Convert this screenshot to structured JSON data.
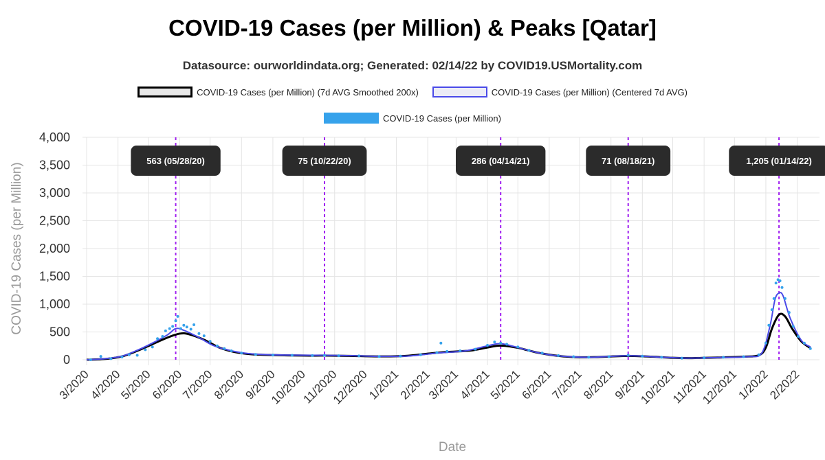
{
  "title": "COVID-19 Cases (per Million) & Peaks [Qatar]",
  "subtitle": "Datasource: ourworldindata.org; Generated: 02/14/22 by COVID19.USMortality.com",
  "colors": {
    "smoothed": "#000000",
    "centered": "#4a4ae8",
    "raw": "#36a2eb",
    "peak_line": "#a020f0",
    "grid": "#e4e4e4",
    "axis_text": "#555555",
    "label_bg": "#2b2b2b"
  },
  "chart_data": {
    "type": "line",
    "xlabel": "Date",
    "ylabel": "COVID-19 Cases (per Million)",
    "ylim": [
      0,
      4000
    ],
    "y_ticks": [
      "0",
      "500",
      "1,000",
      "1,500",
      "2,000",
      "2,500",
      "3,000",
      "3,500",
      "4,000"
    ],
    "x_ticks": [
      "3/2020",
      "4/2020",
      "5/2020",
      "6/2020",
      "7/2020",
      "8/2020",
      "9/2020",
      "10/2020",
      "11/2020",
      "12/2020",
      "1/2021",
      "2/2021",
      "3/2021",
      "4/2021",
      "5/2021",
      "6/2021",
      "7/2021",
      "8/2021",
      "9/2021",
      "10/2021",
      "11/2021",
      "12/2021",
      "1/2022",
      "2/2022"
    ],
    "grid": true,
    "legend_position": "top",
    "series": [
      {
        "name": "COVID-19 Cases (per Million) (7d AVG Smoothed 200x)",
        "style": "line-black",
        "points": [
          [
            "2020-03-01",
            0
          ],
          [
            "2020-03-20",
            15
          ],
          [
            "2020-04-05",
            60
          ],
          [
            "2020-04-20",
            160
          ],
          [
            "2020-05-05",
            280
          ],
          [
            "2020-05-20",
            400
          ],
          [
            "2020-06-01",
            470
          ],
          [
            "2020-06-10",
            460
          ],
          [
            "2020-06-25",
            360
          ],
          [
            "2020-07-10",
            220
          ],
          [
            "2020-07-25",
            140
          ],
          [
            "2020-08-10",
            100
          ],
          [
            "2020-09-01",
            85
          ],
          [
            "2020-10-01",
            75
          ],
          [
            "2020-10-22",
            75
          ],
          [
            "2020-11-15",
            70
          ],
          [
            "2020-12-15",
            60
          ],
          [
            "2021-01-10",
            70
          ],
          [
            "2021-02-01",
            110
          ],
          [
            "2021-02-20",
            140
          ],
          [
            "2021-03-15",
            165
          ],
          [
            "2021-04-01",
            220
          ],
          [
            "2021-04-14",
            255
          ],
          [
            "2021-05-01",
            215
          ],
          [
            "2021-05-20",
            130
          ],
          [
            "2021-06-10",
            70
          ],
          [
            "2021-07-01",
            45
          ],
          [
            "2021-07-20",
            50
          ],
          [
            "2021-08-18",
            70
          ],
          [
            "2021-09-10",
            55
          ],
          [
            "2021-10-01",
            35
          ],
          [
            "2021-10-20",
            30
          ],
          [
            "2021-11-15",
            40
          ],
          [
            "2021-12-10",
            55
          ],
          [
            "2021-12-25",
            80
          ],
          [
            "2022-01-01",
            220
          ],
          [
            "2022-01-07",
            560
          ],
          [
            "2022-01-14",
            810
          ],
          [
            "2022-01-20",
            780
          ],
          [
            "2022-01-27",
            560
          ],
          [
            "2022-02-05",
            330
          ],
          [
            "2022-02-14",
            210
          ]
        ]
      },
      {
        "name": "COVID-19 Cases (per Million) (Centered 7d AVG)",
        "style": "line-blue",
        "points": [
          [
            "2020-03-01",
            0
          ],
          [
            "2020-03-20",
            20
          ],
          [
            "2020-04-05",
            65
          ],
          [
            "2020-04-20",
            170
          ],
          [
            "2020-05-05",
            300
          ],
          [
            "2020-05-20",
            450
          ],
          [
            "2020-05-28",
            560
          ],
          [
            "2020-06-05",
            530
          ],
          [
            "2020-06-20",
            400
          ],
          [
            "2020-07-05",
            250
          ],
          [
            "2020-07-25",
            150
          ],
          [
            "2020-08-15",
            100
          ],
          [
            "2020-09-15",
            85
          ],
          [
            "2020-10-22",
            80
          ],
          [
            "2020-11-20",
            72
          ],
          [
            "2020-12-20",
            60
          ],
          [
            "2021-01-15",
            70
          ],
          [
            "2021-02-10",
            120
          ],
          [
            "2021-03-10",
            160
          ],
          [
            "2021-04-01",
            250
          ],
          [
            "2021-04-14",
            290
          ],
          [
            "2021-05-01",
            220
          ],
          [
            "2021-05-20",
            130
          ],
          [
            "2021-06-10",
            70
          ],
          [
            "2021-07-10",
            45
          ],
          [
            "2021-08-18",
            72
          ],
          [
            "2021-09-15",
            50
          ],
          [
            "2021-10-15",
            30
          ],
          [
            "2021-11-15",
            40
          ],
          [
            "2021-12-15",
            55
          ],
          [
            "2021-12-28",
            120
          ],
          [
            "2022-01-05",
            600
          ],
          [
            "2022-01-10",
            1080
          ],
          [
            "2022-01-14",
            1200
          ],
          [
            "2022-01-18",
            1150
          ],
          [
            "2022-01-25",
            750
          ],
          [
            "2022-02-05",
            350
          ],
          [
            "2022-02-14",
            230
          ]
        ]
      },
      {
        "name": "COVID-19 Cases (per Million)",
        "style": "dots",
        "points": [
          [
            "2020-03-05",
            0
          ],
          [
            "2020-03-15",
            60
          ],
          [
            "2020-03-25",
            20
          ],
          [
            "2020-04-05",
            50
          ],
          [
            "2020-04-12",
            90
          ],
          [
            "2020-04-20",
            80
          ],
          [
            "2020-04-28",
            180
          ],
          [
            "2020-05-05",
            230
          ],
          [
            "2020-05-10",
            380
          ],
          [
            "2020-05-15",
            420
          ],
          [
            "2020-05-18",
            520
          ],
          [
            "2020-05-22",
            560
          ],
          [
            "2020-05-25",
            600
          ],
          [
            "2020-05-28",
            700
          ],
          [
            "2020-05-30",
            780
          ],
          [
            "2020-06-02",
            560
          ],
          [
            "2020-06-05",
            620
          ],
          [
            "2020-06-08",
            590
          ],
          [
            "2020-06-12",
            550
          ],
          [
            "2020-06-15",
            630
          ],
          [
            "2020-06-20",
            470
          ],
          [
            "2020-06-25",
            430
          ],
          [
            "2020-07-01",
            330
          ],
          [
            "2020-07-08",
            250
          ],
          [
            "2020-07-15",
            200
          ],
          [
            "2020-07-22",
            160
          ],
          [
            "2020-08-01",
            120
          ],
          [
            "2020-08-15",
            95
          ],
          [
            "2020-09-01",
            85
          ],
          [
            "2020-09-20",
            80
          ],
          [
            "2020-10-10",
            75
          ],
          [
            "2020-10-22",
            78
          ],
          [
            "2020-11-05",
            72
          ],
          [
            "2020-11-25",
            70
          ],
          [
            "2020-12-15",
            58
          ],
          [
            "2021-01-05",
            65
          ],
          [
            "2021-01-25",
            90
          ],
          [
            "2021-02-10",
            130
          ],
          [
            "2021-02-14",
            300
          ],
          [
            "2021-02-20",
            150
          ],
          [
            "2021-03-05",
            160
          ],
          [
            "2021-03-20",
            190
          ],
          [
            "2021-04-01",
            260
          ],
          [
            "2021-04-08",
            320
          ],
          [
            "2021-04-14",
            300
          ],
          [
            "2021-04-20",
            280
          ],
          [
            "2021-05-01",
            230
          ],
          [
            "2021-05-12",
            170
          ],
          [
            "2021-05-25",
            120
          ],
          [
            "2021-06-10",
            75
          ],
          [
            "2021-06-25",
            55
          ],
          [
            "2021-07-10",
            45
          ],
          [
            "2021-07-30",
            55
          ],
          [
            "2021-08-18",
            80
          ],
          [
            "2021-09-01",
            65
          ],
          [
            "2021-09-20",
            45
          ],
          [
            "2021-10-10",
            30
          ],
          [
            "2021-11-01",
            35
          ],
          [
            "2021-11-20",
            45
          ],
          [
            "2021-12-10",
            55
          ],
          [
            "2021-12-25",
            90
          ],
          [
            "2022-01-01",
            300
          ],
          [
            "2022-01-04",
            620
          ],
          [
            "2022-01-07",
            900
          ],
          [
            "2022-01-09",
            1100
          ],
          [
            "2022-01-11",
            1380
          ],
          [
            "2022-01-13",
            1440
          ],
          [
            "2022-01-15",
            1420
          ],
          [
            "2022-01-17",
            1300
          ],
          [
            "2022-01-20",
            1100
          ],
          [
            "2022-01-24",
            850
          ],
          [
            "2022-01-28",
            600
          ],
          [
            "2022-02-02",
            420
          ],
          [
            "2022-02-08",
            300
          ],
          [
            "2022-02-14",
            200
          ]
        ]
      }
    ],
    "peaks": [
      {
        "date": "2020-05-28",
        "label": "563 (05/28/20)"
      },
      {
        "date": "2020-10-22",
        "label": "75 (10/22/20)"
      },
      {
        "date": "2021-04-14",
        "label": "286 (04/14/21)"
      },
      {
        "date": "2021-08-18",
        "label": "71 (08/18/21)"
      },
      {
        "date": "2022-01-14",
        "label": "1,205 (01/14/22)"
      }
    ]
  }
}
